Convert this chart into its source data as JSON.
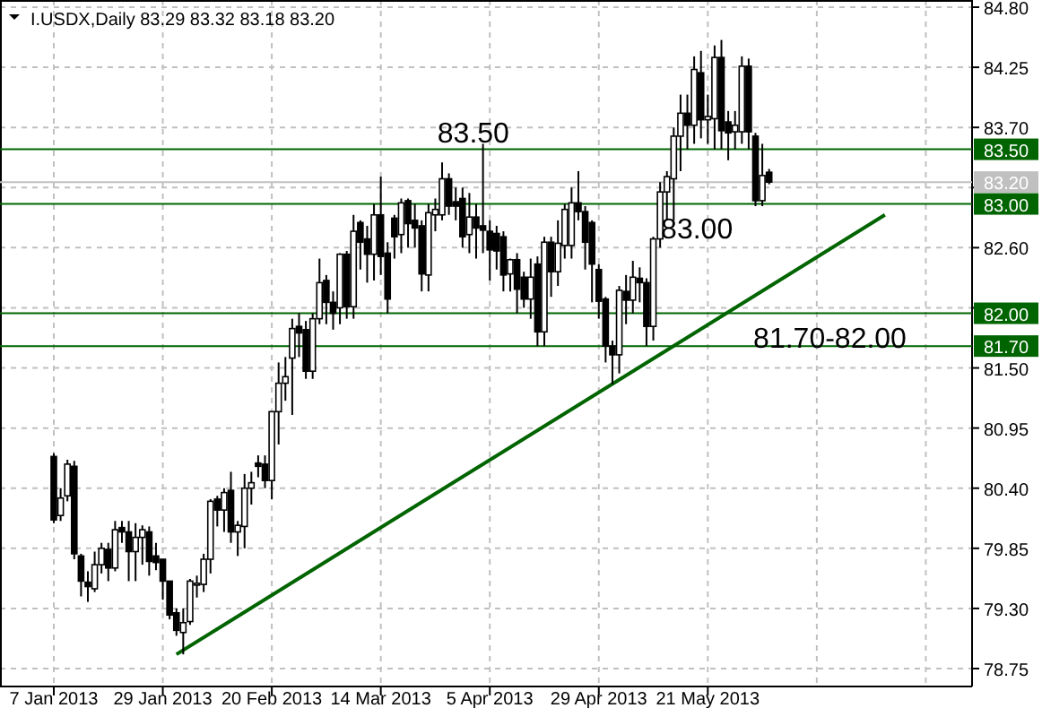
{
  "chart_data": {
    "type": "candlestick",
    "title": "I.USDX,Daily 83.29 83.32 83.18 83.20",
    "categories": [
      "7 Jan 2013",
      null,
      null,
      null,
      null,
      null,
      null,
      null,
      null,
      null,
      null,
      null,
      null,
      null,
      null,
      null,
      "29 Jan 2013",
      null,
      null,
      null,
      null,
      null,
      null,
      null,
      null,
      null,
      null,
      null,
      null,
      null,
      null,
      null,
      "20 Feb 2013",
      null,
      null,
      null,
      null,
      null,
      null,
      null,
      null,
      null,
      null,
      null,
      null,
      null,
      null,
      null,
      "14 Mar 2013",
      null,
      null,
      null,
      null,
      null,
      null,
      null,
      null,
      null,
      null,
      null,
      null,
      null,
      null,
      null,
      "5 Apr 2013",
      null,
      null,
      null,
      null,
      null,
      null,
      null,
      null,
      null,
      null,
      null,
      null,
      null,
      null,
      null,
      "29 Apr 2013",
      null,
      null,
      null,
      null,
      null,
      null,
      null,
      null,
      null,
      null,
      null,
      null,
      null,
      null,
      null,
      "21 May 2013",
      null,
      null,
      null,
      null,
      null,
      null,
      null,
      null,
      null,
      null,
      null,
      null,
      null,
      null,
      null,
      null,
      null,
      null,
      null,
      null,
      null,
      null,
      null,
      null,
      null,
      null,
      null,
      null,
      null,
      null,
      null,
      null,
      null,
      null,
      null,
      null,
      null,
      null
    ],
    "ohlc": [
      [
        80.69,
        80.72,
        80.08,
        80.11
      ],
      [
        80.15,
        80.4,
        80.1,
        80.31
      ],
      [
        80.33,
        80.66,
        80.28,
        80.62
      ],
      [
        80.6,
        80.65,
        79.75,
        79.8
      ],
      [
        79.78,
        79.8,
        79.41,
        79.55
      ],
      [
        79.54,
        79.64,
        79.36,
        79.5
      ],
      [
        79.48,
        79.82,
        79.45,
        79.7
      ],
      [
        79.7,
        79.9,
        79.62,
        79.85
      ],
      [
        79.84,
        79.9,
        79.55,
        79.67
      ],
      [
        79.67,
        80.1,
        79.64,
        80.02
      ],
      [
        80.04,
        80.1,
        79.9,
        80.0
      ],
      [
        80.0,
        80.1,
        79.55,
        79.82
      ],
      [
        79.82,
        80.08,
        79.55,
        79.95
      ],
      [
        79.95,
        80.06,
        79.7,
        80.02
      ],
      [
        80.0,
        80.05,
        79.6,
        79.73
      ],
      [
        79.78,
        79.9,
        79.65,
        79.72
      ],
      [
        79.75,
        79.75,
        79.38,
        79.55
      ],
      [
        79.55,
        79.55,
        79.2,
        79.24
      ],
      [
        79.26,
        79.3,
        79.05,
        79.1
      ],
      [
        79.08,
        79.3,
        78.88,
        79.17
      ],
      [
        79.18,
        79.57,
        79.15,
        79.55
      ],
      [
        79.52,
        79.6,
        79.4,
        79.53
      ],
      [
        79.52,
        79.8,
        79.45,
        79.75
      ],
      [
        79.75,
        80.3,
        79.62,
        80.28
      ],
      [
        80.3,
        80.33,
        80.05,
        80.2
      ],
      [
        80.2,
        80.4,
        80.0,
        80.36
      ],
      [
        80.38,
        80.55,
        79.9,
        80.0
      ],
      [
        80.0,
        80.1,
        79.78,
        80.06
      ],
      [
        80.05,
        80.53,
        79.85,
        80.4
      ],
      [
        80.4,
        80.55,
        80.25,
        80.45
      ],
      [
        80.63,
        80.7,
        80.5,
        80.6
      ],
      [
        80.62,
        80.7,
        80.4,
        80.47
      ],
      [
        80.47,
        81.1,
        80.3,
        81.1
      ],
      [
        81.1,
        81.55,
        80.8,
        81.36
      ],
      [
        81.36,
        81.6,
        81.2,
        81.42
      ],
      [
        81.59,
        81.95,
        81.07,
        81.86
      ],
      [
        81.88,
        82.0,
        81.6,
        81.82
      ],
      [
        81.85,
        81.93,
        81.4,
        81.47
      ],
      [
        81.47,
        82.0,
        81.4,
        81.95
      ],
      [
        81.95,
        82.5,
        81.9,
        82.28
      ],
      [
        82.3,
        82.35,
        81.9,
        82.1
      ],
      [
        82.1,
        82.2,
        81.85,
        82.0
      ],
      [
        82.05,
        82.55,
        81.9,
        82.54
      ],
      [
        82.54,
        82.57,
        81.95,
        82.06
      ],
      [
        82.06,
        82.9,
        81.95,
        82.75
      ],
      [
        82.83,
        82.85,
        82.4,
        82.65
      ],
      [
        82.68,
        82.8,
        82.28,
        82.54
      ],
      [
        82.54,
        83.0,
        82.3,
        82.9
      ],
      [
        82.9,
        83.25,
        82.35,
        82.52
      ],
      [
        82.55,
        82.65,
        82.0,
        82.13
      ],
      [
        82.87,
        82.9,
        82.5,
        82.7
      ],
      [
        82.72,
        83.05,
        82.55,
        83.01
      ],
      [
        83.03,
        83.05,
        82.6,
        82.82
      ],
      [
        82.85,
        83.0,
        82.6,
        82.78
      ],
      [
        82.8,
        82.85,
        82.2,
        82.36
      ],
      [
        82.35,
        83.0,
        82.2,
        82.92
      ],
      [
        82.9,
        83.05,
        82.75,
        82.95
      ],
      [
        82.9,
        83.38,
        82.85,
        83.23
      ],
      [
        83.23,
        83.28,
        82.9,
        82.98
      ],
      [
        83.02,
        83.15,
        82.85,
        82.98
      ],
      [
        83.05,
        83.15,
        82.6,
        82.7
      ],
      [
        82.72,
        83.1,
        82.55,
        82.88
      ],
      [
        82.88,
        83.0,
        82.5,
        82.78
      ],
      [
        82.8,
        83.55,
        82.55,
        82.76
      ],
      [
        82.75,
        82.85,
        82.3,
        82.58
      ],
      [
        82.73,
        82.8,
        82.4,
        82.57
      ],
      [
        82.7,
        82.75,
        82.2,
        82.35
      ],
      [
        82.36,
        82.5,
        82.2,
        82.49
      ],
      [
        82.49,
        82.55,
        82.0,
        82.22
      ],
      [
        82.33,
        82.38,
        82.05,
        82.13
      ],
      [
        82.13,
        82.5,
        81.95,
        82.33
      ],
      [
        82.45,
        82.52,
        81.7,
        81.83
      ],
      [
        81.83,
        82.7,
        81.7,
        82.65
      ],
      [
        82.65,
        82.7,
        82.15,
        82.38
      ],
      [
        82.38,
        82.85,
        82.25,
        82.64
      ],
      [
        82.62,
        83.0,
        82.5,
        82.95
      ],
      [
        82.62,
        83.15,
        82.5,
        83.01
      ],
      [
        83.01,
        83.3,
        82.85,
        82.93
      ],
      [
        82.93,
        82.98,
        82.4,
        82.65
      ],
      [
        82.83,
        82.85,
        82.1,
        82.45
      ],
      [
        82.4,
        82.45,
        81.95,
        82.11
      ],
      [
        82.13,
        82.15,
        81.55,
        81.7
      ],
      [
        81.7,
        81.75,
        81.35,
        81.62
      ],
      [
        81.62,
        82.25,
        81.45,
        82.21
      ],
      [
        82.2,
        82.35,
        81.9,
        82.12
      ],
      [
        82.12,
        82.48,
        82.0,
        82.33
      ],
      [
        82.32,
        82.42,
        82.1,
        82.28
      ],
      [
        82.28,
        82.32,
        81.7,
        81.88
      ],
      [
        81.88,
        82.7,
        81.75,
        82.68
      ],
      [
        82.68,
        83.2,
        82.6,
        83.11
      ],
      [
        83.11,
        83.3,
        82.85,
        83.25
      ],
      [
        83.23,
        83.7,
        82.85,
        83.62
      ],
      [
        83.62,
        84.0,
        83.3,
        83.83
      ],
      [
        83.83,
        84.0,
        83.5,
        83.72
      ],
      [
        83.72,
        84.35,
        83.55,
        84.23
      ],
      [
        84.2,
        84.4,
        83.6,
        83.77
      ],
      [
        83.77,
        84.0,
        83.55,
        83.8
      ],
      [
        83.78,
        84.45,
        83.5,
        84.34
      ],
      [
        84.34,
        84.5,
        83.5,
        83.67
      ],
      [
        83.75,
        83.85,
        83.4,
        83.65
      ],
      [
        83.66,
        83.85,
        83.5,
        83.72
      ],
      [
        83.66,
        84.35,
        83.55,
        84.26
      ],
      [
        84.26,
        84.33,
        83.5,
        83.66
      ],
      [
        83.62,
        83.65,
        82.98,
        83.03
      ],
      [
        83.03,
        83.55,
        82.98,
        83.26
      ],
      [
        83.29,
        83.32,
        83.18,
        83.2
      ],
      null,
      null,
      null,
      null,
      null,
      null,
      null,
      null,
      null,
      null,
      null,
      null,
      null,
      null,
      null,
      null,
      null,
      null,
      null,
      null,
      null,
      null,
      null,
      null,
      null,
      null,
      null,
      null,
      null
    ],
    "series": [
      {
        "type": "line",
        "color": "#006400",
        "values": [
          null,
          null,
          null,
          null,
          null,
          null,
          null,
          null,
          null,
          null,
          null,
          null,
          null,
          null,
          null,
          null,
          null,
          null,
          78.88,
          null,
          null,
          null,
          null,
          null,
          null,
          null,
          null,
          null,
          null,
          null,
          null,
          null,
          null,
          null,
          null,
          null,
          null,
          null,
          null,
          null,
          null,
          null,
          null,
          null,
          null,
          null,
          null,
          null,
          null,
          null,
          null,
          null,
          null,
          null,
          null,
          null,
          null,
          null,
          null,
          null,
          null,
          null,
          null,
          null,
          null,
          null,
          null,
          null,
          null,
          null,
          null,
          null,
          null,
          null,
          null,
          null,
          null,
          null,
          null,
          null,
          null,
          null,
          null,
          null,
          null,
          null,
          null,
          null,
          null,
          null,
          null,
          null,
          null,
          null,
          null,
          null,
          null,
          null,
          null,
          null,
          null,
          null,
          null,
          null,
          null,
          null,
          null,
          null,
          null,
          null,
          null,
          null,
          null,
          null,
          null,
          null,
          null,
          null,
          null,
          null,
          null,
          null,
          82.9,
          null,
          null,
          null,
          null,
          null,
          null,
          null,
          null,
          null,
          null,
          null,
          null
        ]
      }
    ],
    "ylim": [
      78.75,
      84.8
    ],
    "yticks": [
      78.75,
      {
        "value": 79.3,
        "label": "79.30"
      },
      79.85,
      {
        "value": 80.4,
        "label": "80.40"
      },
      80.95,
      {
        "value": 81.5,
        "label": "81.50"
      },
      {
        "value": 82.05,
        "label": null
      },
      {
        "value": 82.6,
        "label": "82.60"
      },
      {
        "value": 83.15,
        "label": null
      },
      {
        "value": 83.7,
        "label": "83.70"
      },
      84.25,
      {
        "value": 84.8,
        "label": "84.80"
      }
    ],
    "grid": true,
    "ref_lines": [
      {
        "axis": "y",
        "value": 83.5,
        "label": "83.50",
        "color": "#006400"
      },
      {
        "axis": "y",
        "value": 83.2,
        "label": "83.20",
        "color": "#c0c0c0"
      },
      {
        "axis": "y",
        "value": 83.0,
        "label": "83.00",
        "color": "#006400"
      },
      {
        "axis": "y",
        "value": 82.0,
        "label": "82.00",
        "color": "#006400"
      },
      {
        "axis": "y",
        "value": 81.7,
        "label": "81.70",
        "color": "#006400"
      }
    ],
    "annotations": [
      {
        "text": "83.50",
        "y": 83.5
      },
      {
        "text": "83.00",
        "y": 83.0
      },
      {
        "text": "81.70-82.00",
        "y": 82.0
      }
    ]
  }
}
